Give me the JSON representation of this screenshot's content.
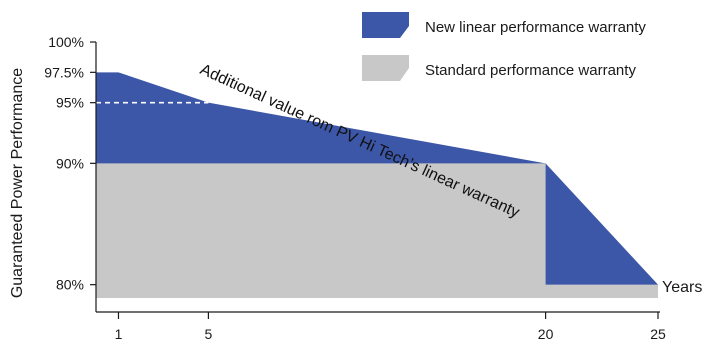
{
  "chart_data": {
    "type": "area",
    "ylabel": "Guaranteed Power Performance",
    "xlabel": "Years",
    "xlim": [
      0,
      25
    ],
    "ylim": [
      77.5,
      100
    ],
    "x_ticks": [
      {
        "value": 1,
        "label": "1"
      },
      {
        "value": 5,
        "label": "5"
      },
      {
        "value": 20,
        "label": "20"
      },
      {
        "value": 25,
        "label": "25"
      }
    ],
    "y_ticks": [
      {
        "value": 100,
        "label": "100%"
      },
      {
        "value": 97.5,
        "label": "97.5%"
      },
      {
        "value": 95,
        "label": "95%"
      },
      {
        "value": 90,
        "label": "90%"
      },
      {
        "value": 80,
        "label": "80%"
      }
    ],
    "series": [
      {
        "name": "New linear performance warranty",
        "color": "#3d57a8",
        "points": [
          {
            "x": 0,
            "y": 97.5
          },
          {
            "x": 1,
            "y": 97.5
          },
          {
            "x": 5,
            "y": 95
          },
          {
            "x": 20,
            "y": 90
          },
          {
            "x": 25,
            "y": 80
          }
        ]
      },
      {
        "name": "Standard performance warranty",
        "color": "#c8c8c8",
        "points": [
          {
            "x": 0,
            "y": 90
          },
          {
            "x": 20,
            "y": 90
          },
          {
            "x": 20,
            "y": 80
          },
          {
            "x": 25,
            "y": 80
          }
        ]
      }
    ],
    "reference_line": {
      "y": 95,
      "x_from": 0,
      "x_to": 5,
      "style": "dashed",
      "color": "#ffffff"
    },
    "annotation": "Additional value rom PV Hi Tech’s linear warranty",
    "legend": {
      "position": "top-right"
    }
  }
}
